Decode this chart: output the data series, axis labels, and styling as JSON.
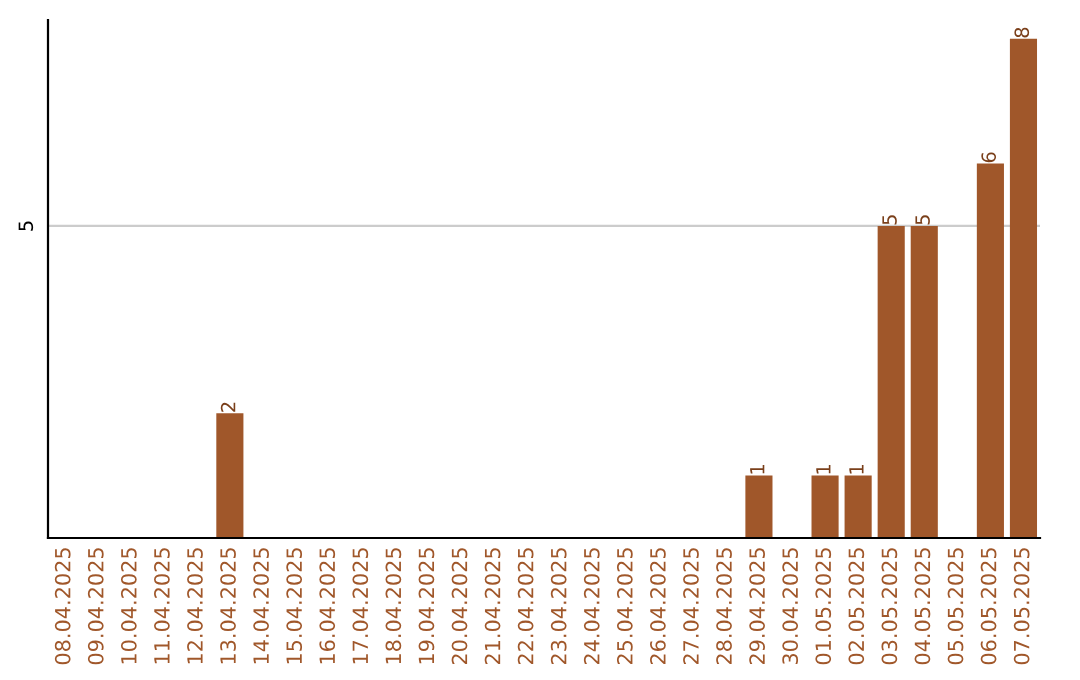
{
  "chart_data": {
    "type": "bar",
    "categories": [
      "08.04.2025",
      "09.04.2025",
      "10.04.2025",
      "11.04.2025",
      "12.04.2025",
      "13.04.2025",
      "14.04.2025",
      "15.04.2025",
      "16.04.2025",
      "17.04.2025",
      "18.04.2025",
      "19.04.2025",
      "20.04.2025",
      "21.04.2025",
      "22.04.2025",
      "23.04.2025",
      "24.04.2025",
      "25.04.2025",
      "26.04.2025",
      "27.04.2025",
      "28.04.2025",
      "29.04.2025",
      "30.04.2025",
      "01.05.2025",
      "02.05.2025",
      "03.05.2025",
      "04.05.2025",
      "05.05.2025",
      "06.05.2025",
      "07.05.2025"
    ],
    "values": [
      0,
      0,
      0,
      0,
      0,
      2,
      0,
      0,
      0,
      0,
      0,
      0,
      0,
      0,
      0,
      0,
      0,
      0,
      0,
      0,
      0,
      1,
      0,
      1,
      1,
      5,
      5,
      0,
      6,
      8
    ],
    "value_labels": [
      null,
      null,
      null,
      null,
      null,
      "2",
      null,
      null,
      null,
      null,
      null,
      null,
      null,
      null,
      null,
      null,
      null,
      null,
      null,
      null,
      null,
      "1",
      null,
      "1",
      "1",
      "5",
      "5",
      null,
      "6",
      "8"
    ],
    "color": "#a0572a",
    "ylim": [
      0,
      8.3
    ],
    "yticks": [
      5
    ],
    "grid": "y"
  }
}
